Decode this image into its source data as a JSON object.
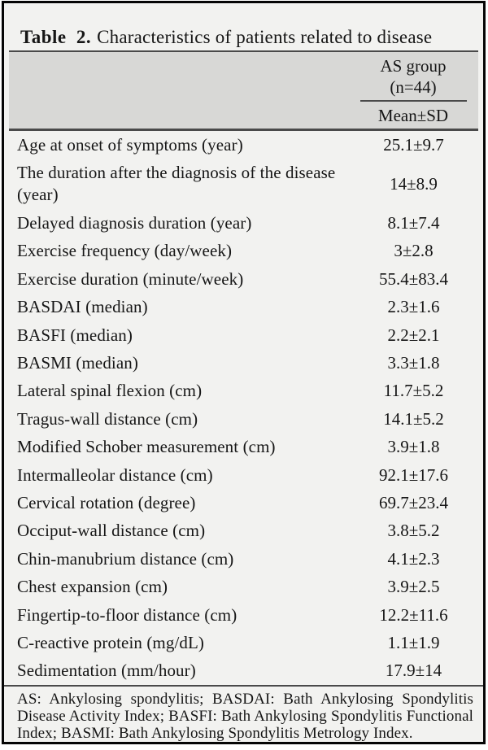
{
  "table": {
    "label": "Table 2.",
    "caption": "Characteristics of patients related to disease",
    "group_header": {
      "line1": "AS group",
      "line2": "(n=44)"
    },
    "stat_header": "Mean±SD",
    "rows": [
      {
        "label": "Age at onset of symptoms (year)",
        "value": "25.1±9.7"
      },
      {
        "label": "The duration after the diagnosis of the disease (year)",
        "value": "14±8.9"
      },
      {
        "label": "Delayed diagnosis duration (year)",
        "value": "8.1±7.4"
      },
      {
        "label": "Exercise frequency (day/week)",
        "value": "3±2.8"
      },
      {
        "label": "Exercise duration (minute/week)",
        "value": "55.4±83.4"
      },
      {
        "label": "BASDAI (median)",
        "value": "2.3±1.6"
      },
      {
        "label": "BASFI (median)",
        "value": "2.2±2.1"
      },
      {
        "label": "BASMI (median)",
        "value": "3.3±1.8"
      },
      {
        "label": "Lateral spinal flexion (cm)",
        "value": "11.7±5.2"
      },
      {
        "label": "Tragus-wall distance (cm)",
        "value": "14.1±5.2"
      },
      {
        "label": "Modified Schober measurement (cm)",
        "value": "3.9±1.8"
      },
      {
        "label": "Intermalleolar distance (cm)",
        "value": "92.1±17.6"
      },
      {
        "label": "Cervical rotation (degree)",
        "value": "69.7±23.4"
      },
      {
        "label": "Occiput-wall distance (cm)",
        "value": "3.8±5.2"
      },
      {
        "label": "Chin-manubrium distance (cm)",
        "value": "4.1±2.3"
      },
      {
        "label": "Chest expansion (cm)",
        "value": "3.9±2.5"
      },
      {
        "label": "Fingertip-to-floor distance (cm)",
        "value": "12.2±11.6"
      },
      {
        "label": "C-reactive protein (mg/dL)",
        "value": "1.1±1.9"
      },
      {
        "label": "Sedimentation (mm/hour)",
        "value": "17.9±14"
      }
    ],
    "footnote": "AS: Ankylosing spondylitis; BASDAI: Bath Ankylosing Spondylitis Disease Activity Index; BASFI: Bath Ankylosing Spondylitis Functional Index; BASMI: Bath Ankylosing Spondylitis Metrology Index.",
    "colors": {
      "frame_border": "#050505",
      "background": "#f2f2f0",
      "header_band": "#d8d8d6",
      "rule": "#4a4a4a",
      "text": "#161616"
    }
  }
}
